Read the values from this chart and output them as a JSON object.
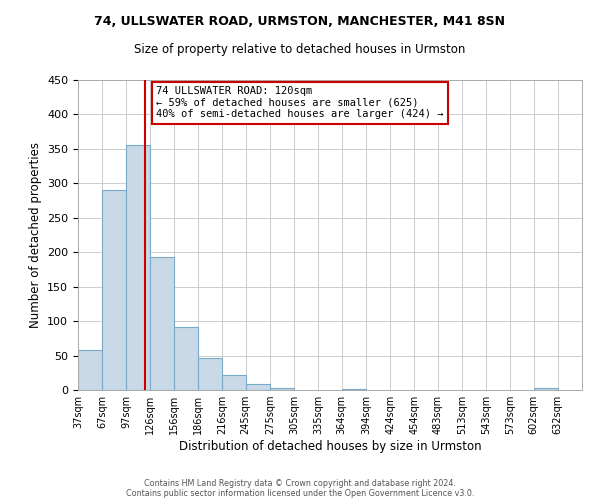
{
  "title1": "74, ULLSWATER ROAD, URMSTON, MANCHESTER, M41 8SN",
  "title2": "Size of property relative to detached houses in Urmston",
  "xlabel": "Distribution of detached houses by size in Urmston",
  "ylabel": "Number of detached properties",
  "bin_labels": [
    "37sqm",
    "67sqm",
    "97sqm",
    "126sqm",
    "156sqm",
    "186sqm",
    "216sqm",
    "245sqm",
    "275sqm",
    "305sqm",
    "335sqm",
    "364sqm",
    "394sqm",
    "424sqm",
    "454sqm",
    "483sqm",
    "513sqm",
    "543sqm",
    "573sqm",
    "602sqm",
    "632sqm"
  ],
  "bin_edges": [
    37,
    67,
    97,
    126,
    156,
    186,
    216,
    245,
    275,
    305,
    335,
    364,
    394,
    424,
    454,
    483,
    513,
    543,
    573,
    602,
    632
  ],
  "bar_heights": [
    58,
    290,
    355,
    193,
    92,
    47,
    22,
    8,
    3,
    0,
    0,
    2,
    0,
    0,
    0,
    0,
    0,
    0,
    0,
    3
  ],
  "bar_color": "#c9d9e8",
  "bar_edge_color": "#7aaac8",
  "property_size": 120,
  "vline_color": "#cc0000",
  "annotation_text_line1": "74 ULLSWATER ROAD: 120sqm",
  "annotation_text_line2": "← 59% of detached houses are smaller (625)",
  "annotation_text_line3": "40% of semi-detached houses are larger (424) →",
  "annotation_box_color": "#cc0000",
  "ylim": [
    0,
    450
  ],
  "footer1": "Contains HM Land Registry data © Crown copyright and database right 2024.",
  "footer2": "Contains public sector information licensed under the Open Government Licence v3.0.",
  "background_color": "#ffffff",
  "grid_color": "#cccccc"
}
